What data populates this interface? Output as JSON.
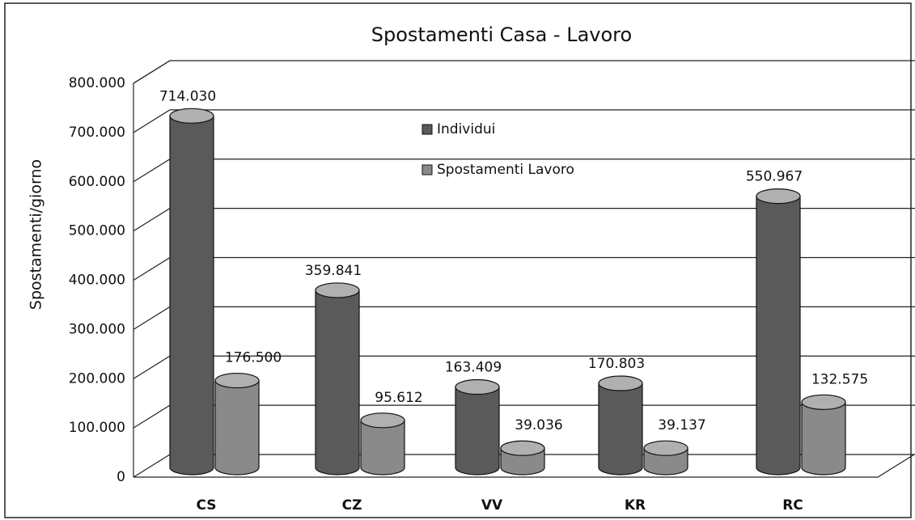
{
  "chart_data": {
    "type": "bar3d",
    "title": "Spostamenti Casa - Lavoro",
    "y_label": "Spostamenti/giorno",
    "categories": [
      "CS",
      "CZ",
      "VV",
      "KR",
      "RC"
    ],
    "series": [
      {
        "name": "Individui",
        "color": "#5a5a5a",
        "values": [
          714030,
          359841,
          163409,
          170803,
          550967
        ],
        "value_labels": [
          "714.030",
          "359.841",
          "163.409",
          "170.803",
          "550.967"
        ]
      },
      {
        "name": "Spostamenti Lavoro",
        "color": "#8a8a8a",
        "values": [
          176500,
          95612,
          39036,
          39137,
          132575
        ],
        "value_labels": [
          "176.500",
          "95.612",
          "39.036",
          "39.137",
          "132.575"
        ]
      }
    ],
    "ylim": [
      0,
      800000
    ],
    "yticks": [
      0,
      {
        "value": 100000,
        "label": "100.000"
      },
      {
        "value": 200000,
        "label": "200.000"
      },
      {
        "value": 300000,
        "label": "300.000"
      },
      {
        "value": 400000,
        "label": "400.000"
      },
      {
        "value": 500000,
        "label": "500.000"
      },
      {
        "value": 600000,
        "label": "600.000"
      },
      {
        "value": 700000,
        "label": "700.000"
      },
      {
        "value": 800000,
        "label": "800.000"
      }
    ],
    "grid": true
  }
}
